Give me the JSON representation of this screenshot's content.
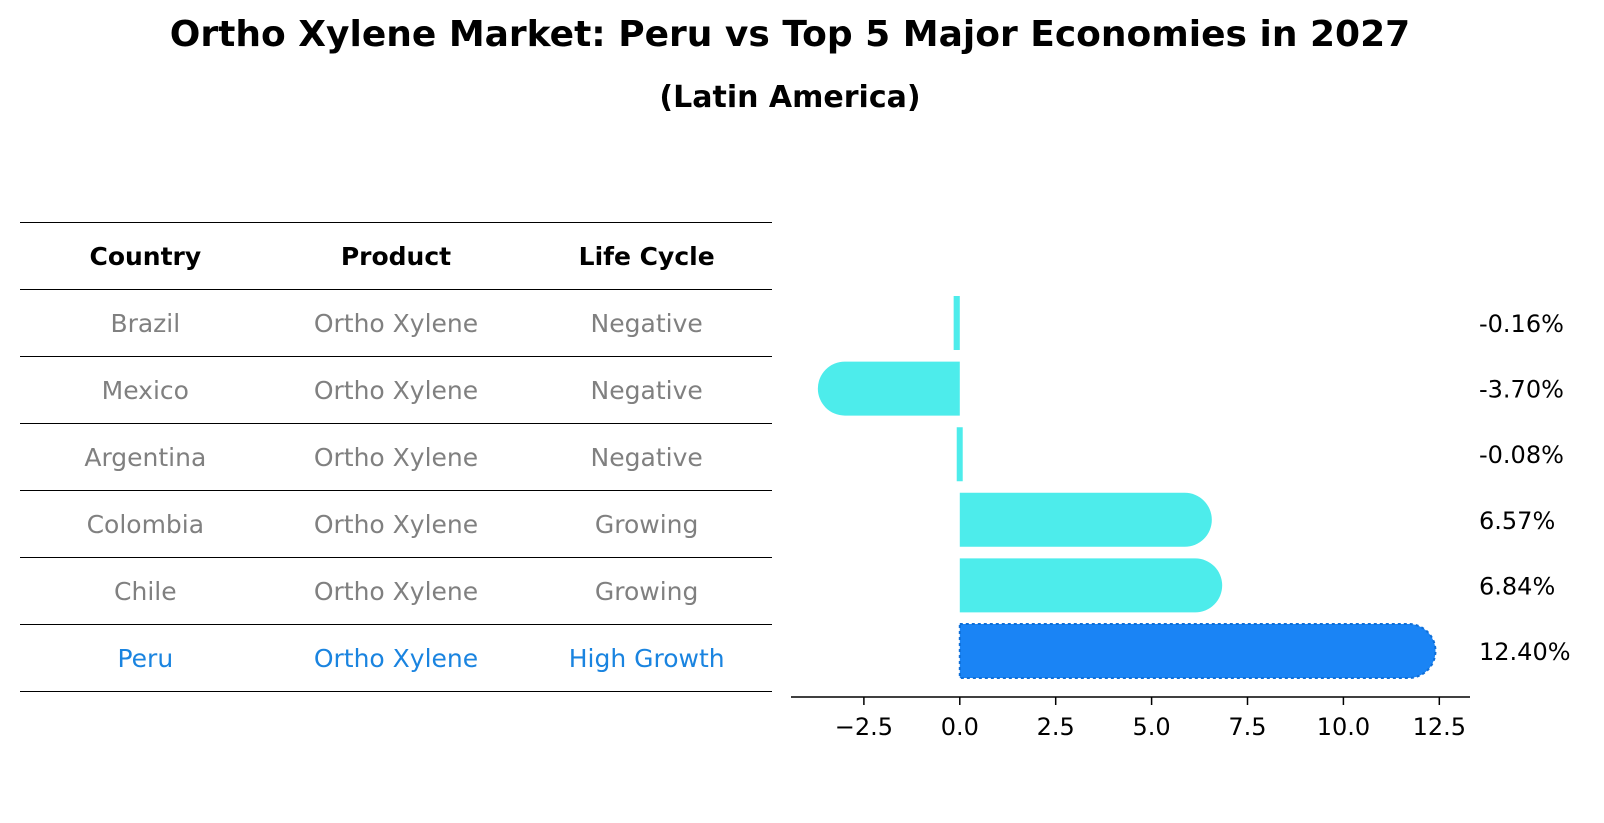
{
  "title": "Ortho Xylene Market: Peru vs Top 5 Major Economies in 2027",
  "subtitle": "(Latin America)",
  "table": {
    "headers": [
      "Country",
      "Product",
      "Life Cycle"
    ],
    "rows": [
      {
        "country": "Brazil",
        "product": "Ortho Xylene",
        "life_cycle": "Negative"
      },
      {
        "country": "Mexico",
        "product": "Ortho Xylene",
        "life_cycle": "Negative"
      },
      {
        "country": "Argentina",
        "product": "Ortho Xylene",
        "life_cycle": "Negative"
      },
      {
        "country": "Colombia",
        "product": "Ortho Xylene",
        "life_cycle": "Growing"
      },
      {
        "country": "Chile",
        "product": "Ortho Xylene",
        "life_cycle": "Growing"
      },
      {
        "country": "Peru",
        "product": "Ortho Xylene",
        "life_cycle": "High Growth"
      }
    ]
  },
  "colors": {
    "bar": "#4deceb",
    "highlight_bar": "#1a84f5",
    "highlight_text": "#1a84e0",
    "row_text": "#808080"
  },
  "chart_data": {
    "type": "bar",
    "orientation": "horizontal",
    "categories": [
      "Brazil",
      "Mexico",
      "Argentina",
      "Colombia",
      "Chile",
      "Peru"
    ],
    "values": [
      -0.16,
      -3.7,
      -0.08,
      6.57,
      6.84,
      12.4
    ],
    "value_labels": [
      "-0.16%",
      "-3.70%",
      "-0.08%",
      "6.57%",
      "6.84%",
      "12.40%"
    ],
    "highlight": "Peru",
    "xticks": [
      -2.5,
      0.0,
      2.5,
      5.0,
      7.5,
      10.0,
      12.5
    ],
    "xtick_labels": [
      "−2.5",
      "0.0",
      "2.5",
      "5.0",
      "7.5",
      "10.0",
      "12.5"
    ],
    "xlim": [
      -4.4,
      13.3
    ],
    "grid": false
  }
}
